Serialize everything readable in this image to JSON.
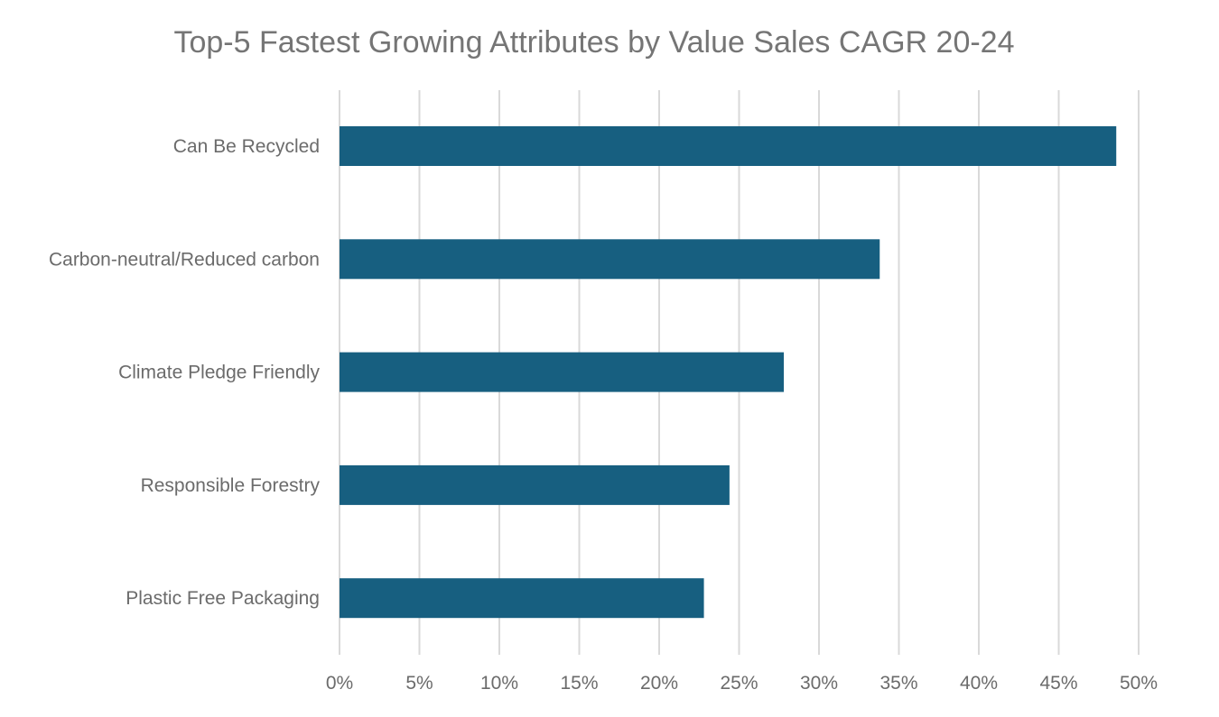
{
  "chart_data": {
    "type": "bar",
    "orientation": "horizontal",
    "title": "Top-5 Fastest Growing Attributes by Value Sales CAGR 20-24",
    "xlabel": "",
    "ylabel": "",
    "categories": [
      "Can Be Recycled",
      "Carbon-neutral/Reduced carbon",
      "Climate Pledge Friendly",
      "Responsible Forestry",
      "Plastic Free Packaging"
    ],
    "values": [
      48.6,
      33.8,
      27.8,
      24.4,
      22.8
    ],
    "value_unit": "%",
    "xlim": [
      0,
      50
    ],
    "x_ticks": [
      "0%",
      "5%",
      "10%",
      "15%",
      "20%",
      "25%",
      "30%",
      "35%",
      "40%",
      "45%",
      "50%"
    ],
    "grid": true,
    "legend": "none",
    "bar_color": "#175f80",
    "grid_color": "#d9d9d9",
    "text_color": "#6b6b6b"
  }
}
